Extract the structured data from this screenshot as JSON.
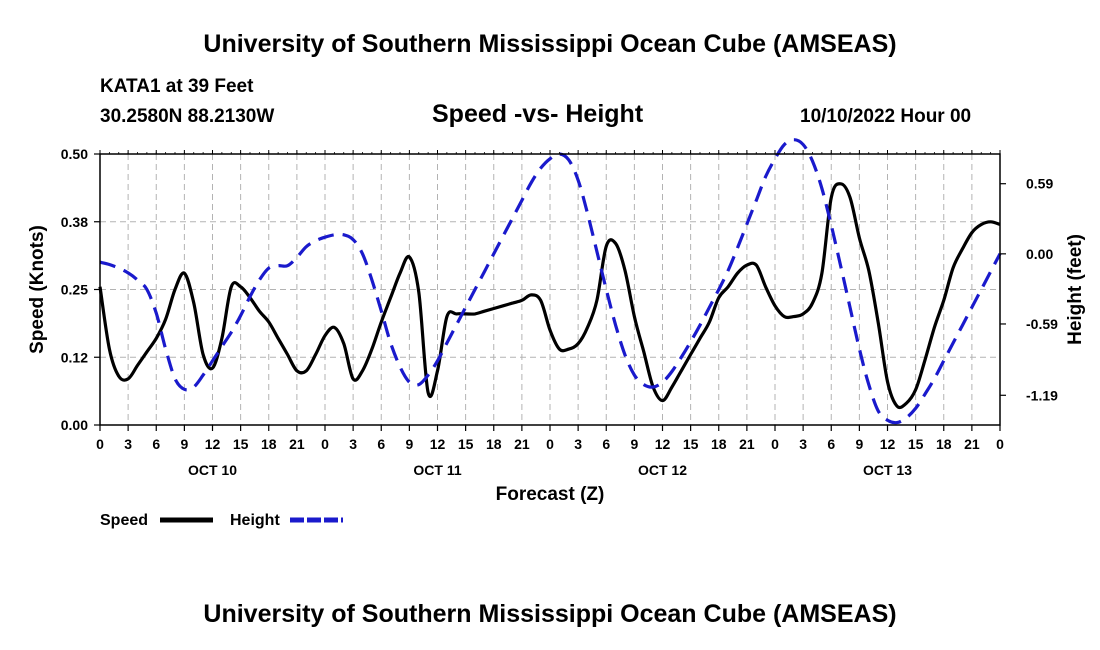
{
  "header": {
    "title": "University of Southern Mississippi Ocean Cube (AMSEAS)",
    "station": "KATA1 at 39 Feet",
    "coords": "30.2580N  88.2130W",
    "subtitle": "Speed -vs- Height",
    "datetime": "10/10/2022 Hour 00"
  },
  "footer": {
    "title": "University of Southern Mississippi Ocean Cube (AMSEAS)"
  },
  "chart_data": {
    "type": "line",
    "title": "Speed -vs- Height",
    "xlabel": "Forecast (Z)",
    "ylabel": "Speed (Knots)",
    "y2label": "Height (feet)",
    "x_range": [
      0,
      96
    ],
    "ylim": [
      0,
      0.5
    ],
    "y2lim": [
      -1.44,
      0.84
    ],
    "y_ticks": [
      "0.00",
      "0.12",
      "0.25",
      "0.38",
      "0.50"
    ],
    "y_tick_values": [
      0,
      0.125,
      0.25,
      0.375,
      0.5
    ],
    "y2_ticks": [
      "-1.19",
      "-0.59",
      "0.00",
      "0.59"
    ],
    "y2_tick_values": [
      -1.19,
      -0.59,
      0,
      0.59
    ],
    "x_tick_labels": [
      "0",
      "3",
      "6",
      "9",
      "12",
      "15",
      "18",
      "21",
      "0",
      "3",
      "6",
      "9",
      "12",
      "15",
      "18",
      "21",
      "0",
      "3",
      "6",
      "9",
      "12",
      "15",
      "18",
      "21",
      "0",
      "3",
      "6",
      "9",
      "12",
      "15",
      "18",
      "21",
      "0"
    ],
    "day_labels": [
      "OCT 10",
      "OCT 11",
      "OCT 12",
      "OCT 13"
    ],
    "legend": [
      {
        "name": "Speed",
        "color": "#000000"
      },
      {
        "name": "Height",
        "color": "#1a1acc"
      }
    ],
    "series": [
      {
        "name": "Speed",
        "axis": "left",
        "color": "#000000",
        "dash": "solid",
        "x": [
          0,
          1,
          2,
          3,
          4,
          5,
          6,
          7,
          8,
          9,
          10,
          11,
          12,
          13,
          14,
          15,
          16,
          17,
          18,
          19,
          20,
          21,
          22,
          23,
          24,
          25,
          26,
          27,
          28,
          29,
          30,
          31,
          32,
          33,
          34,
          35,
          36,
          37,
          38,
          39,
          40,
          41,
          42,
          43,
          44,
          45,
          46,
          47,
          48,
          49,
          50,
          51,
          52,
          53,
          54,
          55,
          56,
          57,
          58,
          59,
          60,
          61,
          62,
          63,
          64,
          65,
          66,
          67,
          68,
          69,
          70,
          71,
          72,
          73,
          74,
          75,
          76,
          77,
          78,
          79,
          80,
          81,
          82,
          83,
          84,
          85,
          86,
          87,
          88,
          89,
          90,
          91,
          92,
          93,
          94,
          95,
          96
        ],
        "values": [
          0.255,
          0.14,
          0.09,
          0.085,
          0.11,
          0.135,
          0.16,
          0.195,
          0.25,
          0.28,
          0.225,
          0.13,
          0.105,
          0.16,
          0.255,
          0.255,
          0.235,
          0.21,
          0.19,
          0.16,
          0.13,
          0.1,
          0.1,
          0.13,
          0.165,
          0.18,
          0.15,
          0.085,
          0.1,
          0.14,
          0.19,
          0.235,
          0.28,
          0.31,
          0.245,
          0.06,
          0.1,
          0.2,
          0.205,
          0.205,
          0.205,
          0.21,
          0.215,
          0.22,
          0.225,
          0.23,
          0.24,
          0.23,
          0.175,
          0.14,
          0.14,
          0.15,
          0.18,
          0.23,
          0.33,
          0.335,
          0.285,
          0.2,
          0.135,
          0.07,
          0.045,
          0.07,
          0.1,
          0.13,
          0.16,
          0.19,
          0.235,
          0.255,
          0.28,
          0.295,
          0.295,
          0.255,
          0.22,
          0.2,
          0.2,
          0.205,
          0.225,
          0.28,
          0.42,
          0.445,
          0.42,
          0.345,
          0.285,
          0.19,
          0.08,
          0.035,
          0.04,
          0.065,
          0.12,
          0.18,
          0.23,
          0.29,
          0.325,
          0.355,
          0.37,
          0.375,
          0.37
        ]
      },
      {
        "name": "Height",
        "axis": "right",
        "color": "#1a1acc",
        "dash": "dashed",
        "x": [
          0,
          1,
          2,
          3,
          4,
          5,
          6,
          7,
          8,
          9,
          10,
          11,
          12,
          13,
          14,
          15,
          16,
          17,
          18,
          19,
          20,
          21,
          22,
          23,
          24,
          25,
          26,
          27,
          28,
          29,
          30,
          31,
          32,
          33,
          34,
          35,
          36,
          37,
          38,
          39,
          40,
          41,
          42,
          43,
          44,
          45,
          46,
          47,
          48,
          49,
          50,
          51,
          52,
          53,
          54,
          55,
          56,
          57,
          58,
          59,
          60,
          61,
          62,
          63,
          64,
          65,
          66,
          67,
          68,
          69,
          70,
          71,
          72,
          73,
          74,
          75,
          76,
          77,
          78,
          79,
          80,
          81,
          82,
          83,
          84,
          85,
          86,
          87,
          88,
          89,
          90,
          91,
          92,
          93,
          94,
          95,
          96
        ],
        "values": [
          -0.07,
          -0.09,
          -0.12,
          -0.16,
          -0.22,
          -0.3,
          -0.5,
          -0.8,
          -1.05,
          -1.14,
          -1.12,
          -1.02,
          -0.9,
          -0.78,
          -0.66,
          -0.52,
          -0.36,
          -0.22,
          -0.12,
          -0.1,
          -0.1,
          -0.03,
          0.06,
          0.11,
          0.14,
          0.16,
          0.16,
          0.12,
          0.0,
          -0.22,
          -0.48,
          -0.75,
          -0.95,
          -1.08,
          -1.1,
          -1.02,
          -0.9,
          -0.75,
          -0.6,
          -0.45,
          -0.3,
          -0.15,
          0.0,
          0.15,
          0.3,
          0.45,
          0.6,
          0.72,
          0.8,
          0.84,
          0.79,
          0.62,
          0.34,
          0.02,
          -0.3,
          -0.6,
          -0.85,
          -1.02,
          -1.1,
          -1.12,
          -1.08,
          -0.99,
          -0.87,
          -0.74,
          -0.6,
          -0.45,
          -0.3,
          -0.14,
          0.05,
          0.25,
          0.45,
          0.65,
          0.8,
          0.92,
          0.96,
          0.92,
          0.78,
          0.55,
          0.24,
          -0.1,
          -0.45,
          -0.8,
          -1.1,
          -1.32,
          -1.4,
          -1.42,
          -1.38,
          -1.3,
          -1.18,
          -1.05,
          -0.9,
          -0.75,
          -0.6,
          -0.45,
          -0.3,
          -0.15,
          0.0
        ]
      }
    ]
  }
}
